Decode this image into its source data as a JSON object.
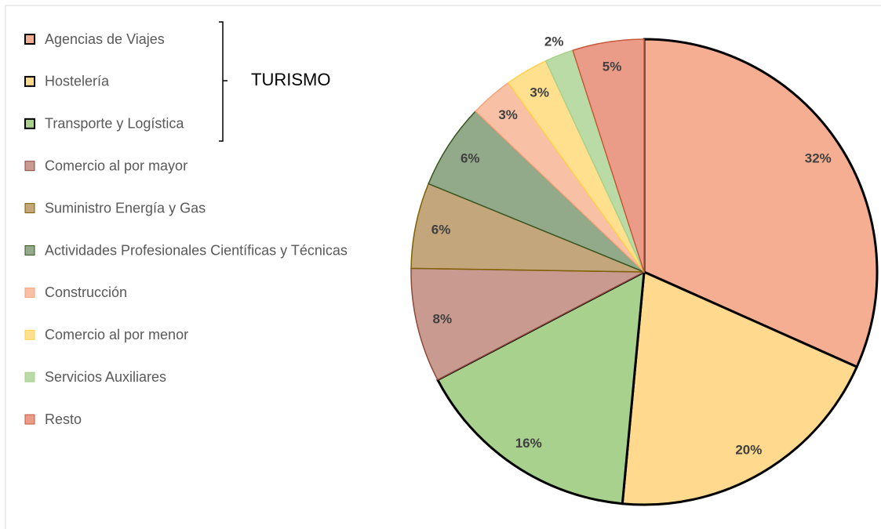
{
  "chart_data": {
    "type": "pie",
    "annotation": "TURISMO",
    "categories": [
      "Agencias de Viajes",
      "Hostelería",
      "Transporte y Logística",
      "Comercio al por mayor",
      "Suministro Energía y Gas",
      "Actividades Profesionales Científicas y Técnicas",
      "Construcción",
      "Comercio al por menor",
      "Servicios Auxiliares",
      "Resto"
    ],
    "values": [
      32,
      20,
      16,
      8,
      6,
      6,
      3,
      3,
      2,
      5
    ],
    "colors": [
      "#f5ae92",
      "#fed98e",
      "#a9d18e",
      "#c99a8f",
      "#c3a67c",
      "#93aa8a",
      "#f8c1a6",
      "#fee08f",
      "#badba6",
      "#eb9c89"
    ],
    "edge_colors": [
      "#000000",
      "#000000",
      "#000000",
      "#8b4a3a",
      "#7f6000",
      "#385723",
      "#f4a37a",
      "#ffd24a",
      "#a9d18e",
      "#c55a3a"
    ],
    "legend": "left"
  }
}
